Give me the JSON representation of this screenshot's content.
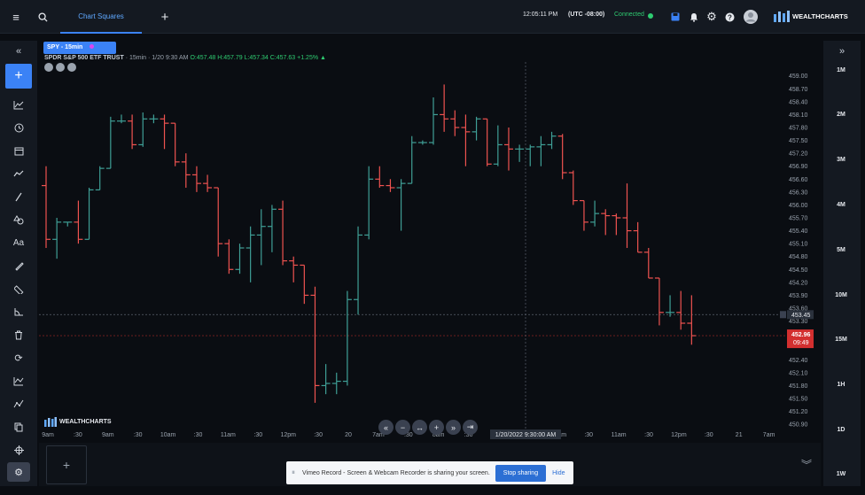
{
  "header": {
    "menu_icon": "hamburger-icon",
    "search_icon": "search-icon",
    "active_tab": "Chart Squares",
    "add_tab_icon": "plus-icon",
    "time": "12:05:11 PM",
    "timezone": "(UTC -08:00)",
    "connection": "Connected",
    "brand": "WEALTHCHARTS"
  },
  "chart": {
    "symbol_tab": "SPY - 15min",
    "info_name": "SPDR S&P 500 ETF TRUST",
    "info_interval": "· 15min · 1/20 9:30 AM",
    "info_ohlc": "O:457.48 H:457.79 L:457.34 C:457.63",
    "info_change": "+1.25%",
    "crosshair_price": "453.45",
    "last_price": "452.96",
    "countdown": "09:49",
    "crosshair_time": "1/20/2022 9:30:00 AM",
    "watermark": "WEALTHCHARTS"
  },
  "chart_data": {
    "type": "bar",
    "title": "SPY - 15min",
    "x_tick_labels": [
      "9am",
      ":30",
      "9am",
      ":30",
      "10am",
      ":30",
      "11am",
      ":30",
      "12pm",
      ":30",
      "20",
      "7am",
      ":30",
      "8am",
      ":30",
      "9am",
      ":30",
      "10am",
      ":30",
      "11am",
      ":30",
      "12pm",
      ":30",
      "21",
      "7am"
    ],
    "y_tick_labels": [
      "459.00",
      "458.70",
      "458.40",
      "458.10",
      "457.80",
      "457.50",
      "457.20",
      "456.90",
      "456.60",
      "456.30",
      "456.00",
      "455.70",
      "455.40",
      "455.10",
      "454.80",
      "454.50",
      "454.20",
      "453.90",
      "453.60",
      "453.30",
      "452.40",
      "452.10",
      "451.80",
      "451.50",
      "451.20",
      "450.90"
    ],
    "ylim": [
      450.8,
      459.2
    ],
    "ohlc_bars": [
      [
        456.45,
        456.9,
        455.0,
        455.2
      ],
      [
        455.2,
        455.7,
        454.75,
        455.6
      ],
      [
        455.6,
        455.6,
        455.5,
        455.6
      ],
      [
        455.6,
        456.1,
        455.1,
        455.2
      ],
      [
        455.2,
        456.4,
        455.2,
        456.35
      ],
      [
        456.35,
        456.9,
        456.35,
        456.85
      ],
      [
        456.85,
        458.05,
        456.85,
        457.95
      ],
      [
        457.95,
        458.1,
        457.9,
        457.95
      ],
      [
        457.95,
        458.1,
        457.3,
        457.4
      ],
      [
        457.4,
        458.15,
        457.35,
        458.0
      ],
      [
        458.0,
        458.1,
        457.9,
        458.0
      ],
      [
        458.0,
        458.1,
        457.3,
        457.9
      ],
      [
        457.9,
        457.9,
        456.9,
        457.0
      ],
      [
        457.0,
        457.2,
        456.4,
        456.7
      ],
      [
        456.7,
        456.9,
        456.3,
        456.5
      ],
      [
        456.5,
        456.7,
        456.3,
        456.4
      ],
      [
        456.4,
        456.4,
        454.8,
        455.1
      ],
      [
        455.1,
        455.2,
        454.4,
        454.5
      ],
      [
        454.5,
        455.1,
        454.4,
        455.0
      ],
      [
        455.0,
        455.5,
        454.2,
        455.3
      ],
      [
        455.3,
        455.9,
        454.6,
        455.5
      ],
      [
        455.5,
        456.0,
        454.9,
        455.9
      ],
      [
        455.9,
        456.1,
        454.6,
        454.7
      ],
      [
        454.7,
        454.8,
        454.2,
        454.6
      ],
      [
        454.6,
        454.6,
        453.7,
        453.9
      ],
      [
        453.9,
        454.1,
        451.4,
        451.8
      ],
      [
        451.8,
        452.3,
        451.6,
        451.85
      ],
      [
        451.85,
        452.1,
        451.6,
        451.9
      ],
      [
        451.9,
        454.0,
        451.8,
        453.8
      ],
      [
        453.8,
        455.5,
        453.45,
        455.3
      ],
      [
        455.3,
        456.9,
        455.2,
        456.6
      ],
      [
        456.6,
        456.9,
        456.4,
        456.45
      ],
      [
        456.45,
        456.6,
        456.3,
        456.4
      ],
      [
        456.4,
        456.6,
        455.4,
        456.5
      ],
      [
        456.5,
        457.6,
        456.5,
        457.45
      ],
      [
        457.45,
        457.5,
        457.4,
        457.45
      ],
      [
        457.45,
        458.5,
        457.4,
        458.1
      ],
      [
        458.1,
        458.8,
        457.7,
        458.0
      ],
      [
        458.0,
        458.2,
        457.6,
        457.8
      ],
      [
        457.8,
        458.1,
        456.9,
        457.7
      ],
      [
        457.7,
        458.05,
        457.5,
        458.0
      ],
      [
        458.0,
        458.0,
        456.9,
        456.95
      ],
      [
        456.95,
        457.85,
        456.9,
        457.4
      ],
      [
        457.4,
        457.8,
        456.8,
        457.3
      ],
      [
        457.3,
        457.4,
        457.0,
        457.3
      ],
      [
        457.3,
        457.4,
        456.9,
        457.35
      ],
      [
        457.35,
        457.6,
        456.9,
        457.4
      ],
      [
        457.4,
        457.7,
        457.3,
        457.6
      ],
      [
        457.6,
        457.65,
        456.6,
        456.75
      ],
      [
        456.75,
        456.8,
        456.0,
        456.1
      ],
      [
        456.1,
        456.1,
        455.4,
        455.6
      ],
      [
        455.6,
        456.1,
        455.5,
        455.8
      ],
      [
        455.8,
        455.9,
        455.3,
        455.75
      ],
      [
        455.75,
        455.8,
        455.3,
        455.7
      ],
      [
        455.7,
        456.5,
        455.0,
        455.4
      ],
      [
        455.4,
        455.6,
        454.9,
        454.9
      ],
      [
        454.9,
        455.0,
        454.3,
        454.3
      ],
      [
        454.3,
        454.3,
        453.2,
        453.5
      ],
      [
        453.5,
        453.9,
        453.4,
        453.5
      ],
      [
        453.5,
        454.0,
        453.1,
        453.25
      ],
      [
        453.25,
        453.9,
        452.75,
        452.96
      ]
    ]
  },
  "timeframes": [
    "1M",
    "2M",
    "3M",
    "4M",
    "5M",
    "10M",
    "15M",
    "1H",
    "1D",
    "1W"
  ],
  "notification": {
    "message": "Vimeo Record - Screen & Webcam Recorder is sharing your screen.",
    "stop_label": "Stop sharing",
    "hide_label": "Hide"
  },
  "colors": {
    "up": "#3f9f96",
    "down": "#ef5350",
    "accent": "#3b82f6",
    "last_price_bg": "#d32f2f"
  }
}
